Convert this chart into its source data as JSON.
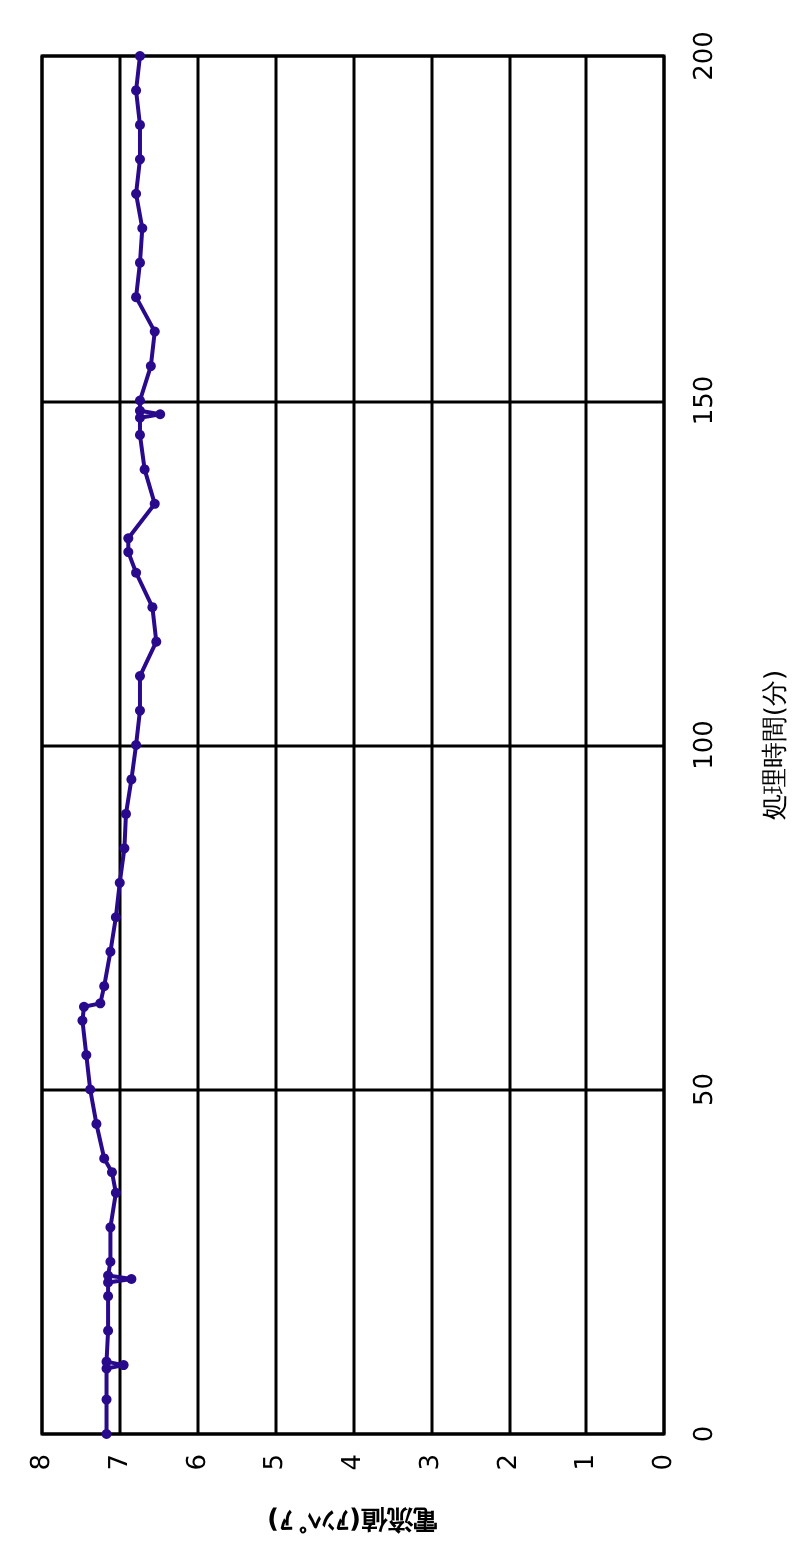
{
  "chart_data": {
    "type": "line",
    "xlabel": "電流値(ｱﾝﾍﾟｱ)",
    "ylabel": "処理時間(分)",
    "xlim": [
      8,
      0
    ],
    "xticks": [
      8,
      7,
      6,
      5,
      4,
      3,
      2,
      1,
      0
    ],
    "ylim": [
      0,
      200
    ],
    "yticks": [
      0,
      50,
      100,
      150,
      200
    ],
    "grid": true,
    "marker": "circle",
    "line_style": "solid",
    "series": [
      {
        "color": "#2a0a8c",
        "values": [
          0,
          5,
          9.5,
          10,
          10.5,
          15,
          20,
          22,
          22.5,
          23,
          25,
          30,
          35,
          38,
          40,
          45,
          50,
          55,
          60,
          62,
          62.5,
          65,
          70,
          75,
          80,
          85,
          90,
          95,
          100,
          105,
          110,
          115,
          120,
          125,
          128,
          130,
          135,
          140,
          145,
          147.5,
          148,
          148.5,
          150,
          155,
          160,
          165,
          170,
          175,
          180,
          185,
          190,
          195,
          200
        ],
        "x": [
          7.17,
          7.17,
          7.17,
          6.95,
          7.17,
          7.15,
          7.15,
          7.15,
          6.85,
          7.15,
          7.12,
          7.12,
          7.05,
          7.1,
          7.2,
          7.3,
          7.38,
          7.43,
          7.48,
          7.46,
          7.25,
          7.2,
          7.12,
          7.05,
          7.0,
          6.94,
          6.92,
          6.85,
          6.79,
          6.74,
          6.74,
          6.53,
          6.58,
          6.79,
          6.89,
          6.89,
          6.55,
          6.68,
          6.74,
          6.74,
          6.48,
          6.74,
          6.74,
          6.6,
          6.55,
          6.79,
          6.74,
          6.71,
          6.79,
          6.74,
          6.74,
          6.79,
          6.74
        ]
      }
    ]
  }
}
